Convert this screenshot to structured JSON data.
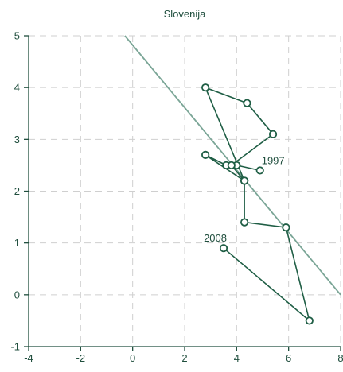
{
  "chart_data": {
    "type": "scatter",
    "title": "Slovenija",
    "xlabel": "",
    "ylabel": "",
    "xlim": [
      -4,
      8
    ],
    "ylim": [
      -1,
      5
    ],
    "xticks": [
      -4,
      -2,
      0,
      2,
      4,
      6,
      8
    ],
    "yticks": [
      -1,
      0,
      1,
      2,
      3,
      4,
      5
    ],
    "grid": true,
    "series": [
      {
        "connected": true,
        "points": [
          {
            "x": 4.9,
            "y": 2.4
          },
          {
            "x": 4.0,
            "y": 2.5
          },
          {
            "x": 3.6,
            "y": 2.5
          },
          {
            "x": 2.8,
            "y": 2.7
          },
          {
            "x": 4.3,
            "y": 2.2
          },
          {
            "x": 2.8,
            "y": 4.0
          },
          {
            "x": 4.4,
            "y": 3.7
          },
          {
            "x": 5.4,
            "y": 3.1
          },
          {
            "x": 3.8,
            "y": 2.5
          },
          {
            "x": 4.3,
            "y": 2.2
          },
          {
            "x": 4.3,
            "y": 1.4
          },
          {
            "x": 5.9,
            "y": 1.3
          },
          {
            "x": 6.8,
            "y": -0.5
          },
          {
            "x": 3.5,
            "y": 0.9
          }
        ]
      }
    ],
    "trend_line": {
      "x": [
        -0.3,
        8.0
      ],
      "y": [
        5.0,
        0.0
      ]
    },
    "annotations": [
      {
        "text": "1997",
        "x": 4.9,
        "y": 2.4,
        "anchor": "above-right"
      },
      {
        "text": "2008",
        "x": 3.5,
        "y": 0.9,
        "anchor": "above-left"
      }
    ],
    "colors": {
      "line": "#1f5e45",
      "trend": "#7aa596",
      "grid": "#cfcfcf",
      "text": "#1f4e3d"
    }
  }
}
